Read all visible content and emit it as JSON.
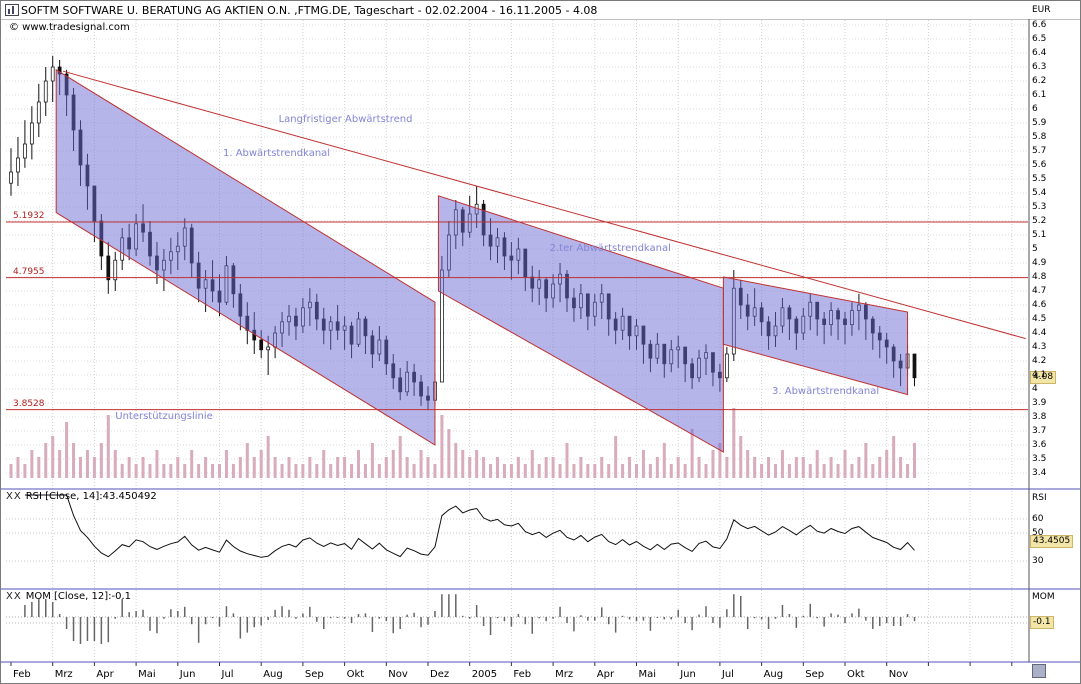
{
  "window": {
    "title": "SOFTM SOFTWARE U. BERATUNG AG AKTIEN O.N. ,FTMG.DE, Tageschart - 02.02.2004 - 16.11.2005 - 4.08",
    "copyright": "© www.tradesignal.com"
  },
  "chart_data": {
    "type": "candlestick",
    "x_labels": [
      "Feb",
      "Mrz",
      "Apr",
      "Mai",
      "Jun",
      "Jul",
      "Aug",
      "Sep",
      "Okt",
      "Nov",
      "Dez",
      "2005",
      "Feb",
      "Mrz",
      "Apr",
      "Mai",
      "Jun",
      "Jul",
      "Aug",
      "Sep",
      "Okt",
      "Nov"
    ],
    "bars_per_month": 6,
    "price_axis": {
      "unit": "EUR",
      "ylim": [
        3.4,
        6.6
      ],
      "tick_step": 0.1,
      "last": 4.08,
      "last_label": "4.08"
    },
    "levels": [
      {
        "label": "5.1932",
        "value": 5.1932
      },
      {
        "label": "4.7955",
        "value": 4.7955
      },
      {
        "label": "3.8528",
        "value": 3.8528
      }
    ],
    "trendlines": [
      {
        "name": "Langfristiger Abwärtstrend",
        "from": [
          7.5,
          6.27
        ],
        "to": [
          146,
          4.36
        ]
      }
    ],
    "channels": [
      {
        "name": "1. Abwärtstrendkanal",
        "points": [
          [
            6.5,
            6.28
          ],
          [
            61,
            4.62
          ],
          [
            61,
            3.6
          ],
          [
            6.5,
            5.26
          ]
        ]
      },
      {
        "name": "2.ter Abwärtstrendkanal",
        "points": [
          [
            61.5,
            5.38
          ],
          [
            102.5,
            4.72
          ],
          [
            102.5,
            3.55
          ],
          [
            61.5,
            4.7
          ]
        ]
      },
      {
        "name": "3. Abwärtstrendkanal",
        "points": [
          [
            102.5,
            4.8
          ],
          [
            129,
            4.55
          ],
          [
            129,
            3.96
          ],
          [
            102.5,
            4.32
          ]
        ]
      }
    ],
    "annotations": [
      {
        "label": "Langfristiger Abwärtstrend",
        "bar": 38.5,
        "price": 5.92
      },
      {
        "label": "1. Abwärtstrendkanal",
        "bar": 30.5,
        "price": 5.68
      },
      {
        "label": "2.ter Abwärtstrendkanal",
        "bar": 77.5,
        "price": 5.0
      },
      {
        "label": "3. Abwärtstrendkanal",
        "bar": 109.5,
        "price": 3.98
      },
      {
        "label": "Unterstützungslinie",
        "bar": 15,
        "price": 3.8
      }
    ],
    "bars": [
      [
        5.72,
        5.38,
        5.55
      ],
      [
        5.8,
        5.45,
        5.65
      ],
      [
        5.92,
        5.58,
        5.75
      ],
      [
        6.02,
        5.64,
        5.9
      ],
      [
        6.18,
        5.8,
        6.05
      ],
      [
        6.3,
        5.95,
        6.2
      ],
      [
        6.38,
        6.05,
        6.3
      ],
      [
        6.35,
        6.1,
        6.25
      ],
      [
        6.28,
        5.95,
        6.1
      ],
      [
        6.15,
        5.7,
        5.85
      ],
      [
        5.92,
        5.45,
        5.6
      ],
      [
        5.68,
        5.28,
        5.45
      ],
      [
        5.4,
        5.05,
        5.2
      ],
      [
        5.25,
        4.85,
        4.95
      ],
      [
        5.05,
        4.68,
        4.78
      ],
      [
        4.98,
        4.7,
        4.92
      ],
      [
        5.15,
        4.85,
        5.08
      ],
      [
        5.18,
        4.92,
        5.0
      ],
      [
        5.25,
        4.95,
        5.18
      ],
      [
        5.32,
        5.05,
        5.12
      ],
      [
        5.2,
        4.88,
        4.95
      ],
      [
        5.05,
        4.75,
        4.85
      ],
      [
        5.0,
        4.7,
        4.92
      ],
      [
        5.08,
        4.82,
        4.98
      ],
      [
        5.12,
        4.85,
        5.02
      ],
      [
        5.22,
        4.92,
        5.15
      ],
      [
        5.18,
        4.8,
        4.9
      ],
      [
        4.98,
        4.62,
        4.72
      ],
      [
        4.85,
        4.55,
        4.78
      ],
      [
        4.92,
        4.62,
        4.7
      ],
      [
        4.82,
        4.52,
        4.62
      ],
      [
        4.95,
        4.6,
        4.88
      ],
      [
        4.9,
        4.58,
        4.68
      ],
      [
        4.75,
        4.42,
        4.52
      ],
      [
        4.62,
        4.32,
        4.42
      ],
      [
        4.55,
        4.25,
        4.35
      ],
      [
        4.42,
        4.22,
        4.28
      ],
      [
        4.38,
        4.1,
        4.3
      ],
      [
        4.45,
        4.22,
        4.4
      ],
      [
        4.55,
        4.3,
        4.48
      ],
      [
        4.6,
        4.38,
        4.52
      ],
      [
        4.58,
        4.35,
        4.45
      ],
      [
        4.65,
        4.4,
        4.58
      ],
      [
        4.72,
        4.45,
        4.62
      ],
      [
        4.68,
        4.42,
        4.5
      ],
      [
        4.58,
        4.32,
        4.42
      ],
      [
        4.52,
        4.28,
        4.48
      ],
      [
        4.6,
        4.35,
        4.42
      ],
      [
        4.52,
        4.28,
        4.45
      ],
      [
        4.48,
        4.22,
        4.32
      ],
      [
        4.55,
        4.3,
        4.5
      ],
      [
        4.52,
        4.25,
        4.38
      ],
      [
        4.42,
        4.15,
        4.25
      ],
      [
        4.45,
        4.2,
        4.35
      ],
      [
        4.38,
        4.1,
        4.18
      ],
      [
        4.25,
        4.0,
        4.08
      ],
      [
        4.15,
        3.92,
        3.98
      ],
      [
        4.2,
        3.95,
        4.12
      ],
      [
        4.18,
        3.95,
        4.05
      ],
      [
        4.1,
        3.88,
        3.95
      ],
      [
        4.02,
        3.85,
        3.92
      ],
      [
        4.12,
        3.88,
        4.05
      ],
      [
        4.95,
        4.1,
        4.85
      ],
      [
        5.2,
        4.8,
        5.1
      ],
      [
        5.35,
        5.0,
        5.28
      ],
      [
        5.3,
        5.02,
        5.12
      ],
      [
        5.38,
        5.08,
        5.25
      ],
      [
        5.45,
        5.15,
        5.32
      ],
      [
        5.35,
        5.02,
        5.1
      ],
      [
        5.22,
        4.92,
        5.02
      ],
      [
        5.15,
        4.9,
        5.08
      ],
      [
        5.12,
        4.85,
        4.95
      ],
      [
        5.05,
        4.78,
        4.92
      ],
      [
        5.08,
        4.82,
        5.0
      ],
      [
        4.98,
        4.7,
        4.8
      ],
      [
        4.88,
        4.62,
        4.72
      ],
      [
        4.85,
        4.6,
        4.78
      ],
      [
        4.8,
        4.55,
        4.65
      ],
      [
        4.82,
        4.58,
        4.75
      ],
      [
        4.9,
        4.62,
        4.82
      ],
      [
        4.85,
        4.55,
        4.65
      ],
      [
        4.72,
        4.48,
        4.58
      ],
      [
        4.75,
        4.5,
        4.68
      ],
      [
        4.68,
        4.42,
        4.52
      ],
      [
        4.68,
        4.45,
        4.62
      ],
      [
        4.75,
        4.5,
        4.68
      ],
      [
        4.65,
        4.38,
        4.5
      ],
      [
        4.55,
        4.32,
        4.42
      ],
      [
        4.58,
        4.35,
        4.52
      ],
      [
        4.52,
        4.28,
        4.38
      ],
      [
        4.5,
        4.28,
        4.45
      ],
      [
        4.42,
        4.18,
        4.32
      ],
      [
        4.35,
        4.12,
        4.22
      ],
      [
        4.4,
        4.18,
        4.32
      ],
      [
        4.32,
        4.08,
        4.18
      ],
      [
        4.35,
        4.12,
        4.28
      ],
      [
        4.38,
        4.15,
        4.3
      ],
      [
        4.3,
        4.05,
        4.18
      ],
      [
        4.22,
        4.0,
        4.08
      ],
      [
        4.28,
        4.05,
        4.22
      ],
      [
        4.32,
        4.1,
        4.26
      ],
      [
        4.25,
        4.02,
        4.12
      ],
      [
        4.18,
        3.98,
        4.08
      ],
      [
        4.3,
        4.05,
        4.25
      ],
      [
        4.85,
        4.2,
        4.72
      ],
      [
        4.78,
        4.5,
        4.6
      ],
      [
        4.68,
        4.42,
        4.52
      ],
      [
        4.72,
        4.45,
        4.58
      ],
      [
        4.62,
        4.38,
        4.48
      ],
      [
        4.52,
        4.28,
        4.38
      ],
      [
        4.55,
        4.3,
        4.45
      ],
      [
        4.65,
        4.4,
        4.58
      ],
      [
        4.6,
        4.35,
        4.5
      ],
      [
        4.52,
        4.28,
        4.4
      ],
      [
        4.58,
        4.35,
        4.52
      ],
      [
        4.68,
        4.42,
        4.62
      ],
      [
        4.62,
        4.38,
        4.5
      ],
      [
        4.55,
        4.32,
        4.46
      ],
      [
        4.62,
        4.38,
        4.56
      ],
      [
        4.58,
        4.35,
        4.5
      ],
      [
        4.55,
        4.32,
        4.46
      ],
      [
        4.62,
        4.38,
        4.56
      ],
      [
        4.68,
        4.42,
        4.6
      ],
      [
        4.62,
        4.35,
        4.5
      ],
      [
        4.52,
        4.28,
        4.4
      ],
      [
        4.45,
        4.22,
        4.35
      ],
      [
        4.4,
        4.18,
        4.3
      ],
      [
        4.32,
        4.08,
        4.2
      ],
      [
        4.25,
        4.02,
        4.15
      ],
      [
        4.32,
        4.1,
        4.25
      ],
      [
        4.2,
        4.02,
        4.08
      ]
    ],
    "volumes": [
      2,
      3,
      2,
      4,
      3,
      5,
      6,
      4,
      8,
      5,
      3,
      4,
      3,
      5,
      9,
      4,
      2,
      3,
      2,
      3,
      2,
      4,
      2,
      2,
      3,
      2,
      4,
      2,
      3,
      2,
      2,
      4,
      2,
      3,
      5,
      3,
      4,
      6,
      3,
      2,
      3,
      2,
      2,
      3,
      2,
      4,
      2,
      3,
      3,
      2,
      4,
      2,
      5,
      2,
      3,
      4,
      6,
      3,
      2,
      4,
      3,
      2,
      9,
      7,
      5,
      4,
      3,
      4,
      3,
      2,
      3,
      2,
      2,
      3,
      2,
      4,
      2,
      3,
      3,
      2,
      5,
      2,
      3,
      2,
      2,
      3,
      2,
      6,
      2,
      3,
      2,
      4,
      2,
      3,
      5,
      2,
      3,
      2,
      7,
      3,
      2,
      4,
      5,
      3,
      10,
      6,
      4,
      3,
      2,
      3,
      2,
      4,
      2,
      3,
      3,
      2,
      4,
      2,
      3,
      2,
      4,
      2,
      3,
      5,
      2,
      3,
      4,
      6,
      3,
      2,
      5
    ],
    "rsi": {
      "buttons": "XX",
      "label": "RSI [Close, 14]:43.450492",
      "unit": "RSI",
      "period": 14,
      "ticks": [
        60,
        50,
        30
      ],
      "last": 43.450492,
      "last_label": "43.4505"
    },
    "mom": {
      "buttons": "XX",
      "label": "MOM [Close, 12]:-0.1",
      "unit": "MOM",
      "period": 12,
      "last": -0.1,
      "last_label": "-0.1"
    }
  }
}
